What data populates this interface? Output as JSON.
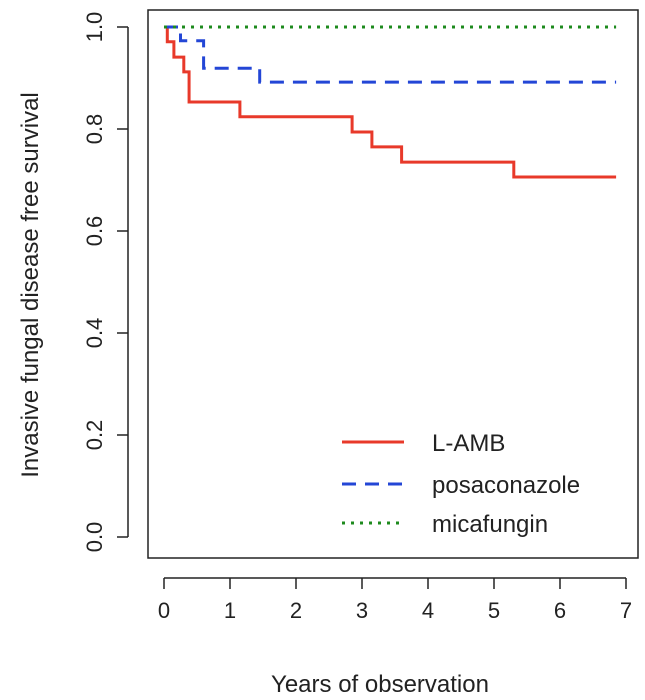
{
  "chart_data": {
    "type": "line",
    "subtype": "kaplan-meier step",
    "title": "",
    "xlabel": "Years of observation",
    "ylabel": "Invasive fungal disease free survival",
    "xlim": [
      0,
      7
    ],
    "ylim": [
      0,
      1.0
    ],
    "xticks": [
      0,
      1,
      2,
      3,
      4,
      5,
      6,
      7
    ],
    "xtick_labels": [
      "0",
      "1",
      "2",
      "3",
      "4",
      "5",
      "6",
      "7"
    ],
    "yticks": [
      0.0,
      0.2,
      0.4,
      0.6,
      0.8,
      1.0
    ],
    "ytick_labels": [
      "0.0",
      "0.2",
      "0.4",
      "0.6",
      "0.8",
      "1.0"
    ],
    "legend_position": "bottom-right",
    "series": [
      {
        "name": "L-AMB",
        "color": "#e8392a",
        "dash": "solid",
        "x": [
          0,
          0.05,
          0.15,
          0.3,
          0.38,
          1.15,
          2.85,
          3.15,
          3.6,
          5.3,
          6.85
        ],
        "y": [
          1.0,
          0.971,
          0.941,
          0.912,
          0.853,
          0.824,
          0.794,
          0.765,
          0.735,
          0.706,
          0.706
        ]
      },
      {
        "name": "posaconazole",
        "color": "#2346d6",
        "dash": "dashed",
        "x": [
          0,
          0.25,
          0.6,
          1.45,
          6.85
        ],
        "y": [
          1.0,
          0.973,
          0.919,
          0.892,
          0.892
        ]
      },
      {
        "name": "micafungin",
        "color": "#1d8a1d",
        "dash": "dotted",
        "x": [
          0,
          6.85
        ],
        "y": [
          1.0,
          1.0
        ]
      }
    ]
  }
}
